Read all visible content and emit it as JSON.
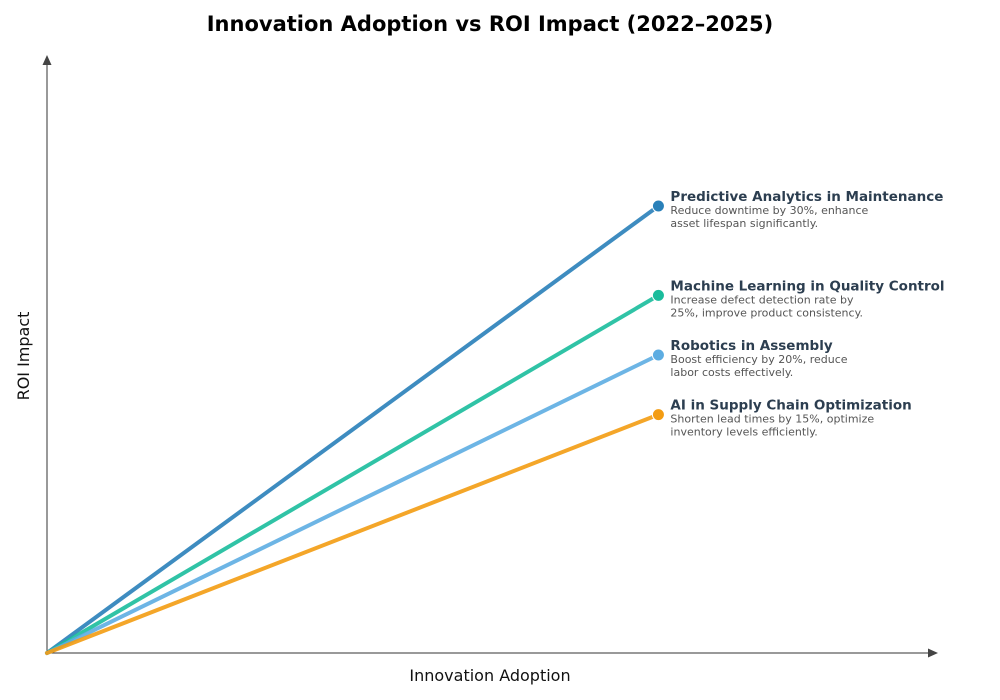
{
  "chart_data": {
    "type": "line",
    "title": "Innovation Adoption vs ROI Impact (2022–2025)",
    "xlabel": "Innovation Adoption",
    "ylabel": "ROI Impact",
    "xlim": [
      0,
      1.0
    ],
    "ylim": [
      0,
      1.0
    ],
    "grid": false,
    "ticks": false,
    "series": [
      {
        "name": "Predictive Analytics in Maintenance",
        "description": [
          "Reduce downtime by 30%, enhance",
          "asset lifespan significantly."
        ],
        "color": "#2980b9",
        "x": [
          0,
          0.687
        ],
        "y": [
          0,
          0.75
        ]
      },
      {
        "name": "Machine Learning in Quality Control",
        "description": [
          "Increase defect detection rate by",
          "25%, improve product consistency."
        ],
        "color": "#1abc9c",
        "x": [
          0,
          0.687
        ],
        "y": [
          0,
          0.6
        ]
      },
      {
        "name": "Robotics in Assembly",
        "description": [
          "Boost efficiency by 20%, reduce",
          "labor costs effectively."
        ],
        "color": "#5dade2",
        "x": [
          0,
          0.687
        ],
        "y": [
          0,
          0.5
        ]
      },
      {
        "name": "AI in Supply Chain Optimization",
        "description": [
          "Shorten lead times by 15%, optimize",
          "inventory levels efficiently."
        ],
        "color": "#f39c12",
        "x": [
          0,
          0.687
        ],
        "y": [
          0,
          0.4
        ]
      }
    ]
  }
}
